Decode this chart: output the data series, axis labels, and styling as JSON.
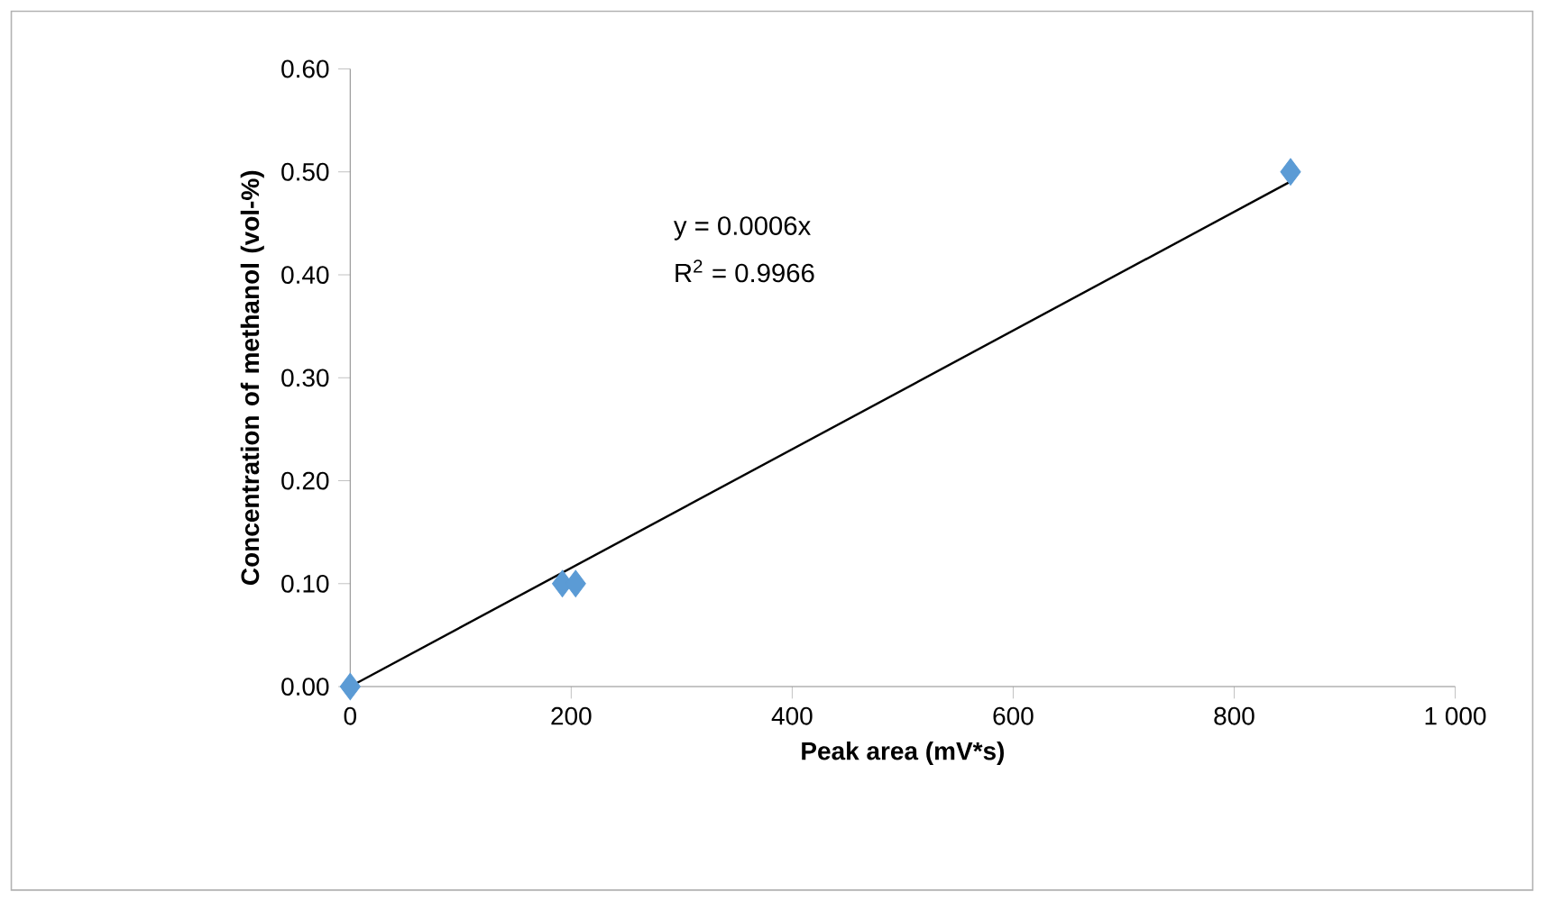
{
  "chart_data": {
    "type": "scatter",
    "xlabel": "Peak area (mV*s)",
    "ylabel": "Concentration of methanol (vol-%)",
    "xlim": [
      0,
      1000
    ],
    "xticks": [
      0,
      200,
      400,
      600,
      800,
      {
        "value": 1000,
        "label": "1 000"
      }
    ],
    "ylim": [
      0,
      0.6
    ],
    "yticks": [
      {
        "value": 0,
        "label": "0.00"
      },
      {
        "value": 0.1,
        "label": "0.10"
      },
      {
        "value": 0.2,
        "label": "0.20"
      },
      {
        "value": 0.3,
        "label": "0.30"
      },
      {
        "value": 0.4,
        "label": "0.40"
      },
      {
        "value": 0.5,
        "label": "0.50"
      },
      {
        "value": 0.6,
        "label": "0.60"
      }
    ],
    "grid": false,
    "marker": "diamond",
    "series": [
      {
        "color": "#5b9bd5",
        "x": [
          0,
          192,
          204,
          851
        ],
        "values": [
          0,
          0.1,
          0.1,
          0.5
        ]
      },
      {
        "type": "line",
        "color": "#000000",
        "marker": "none",
        "x": [
          0,
          850
        ],
        "values": [
          0,
          0.49
        ]
      }
    ],
    "annotations": [
      "y = 0.0006x",
      "R$^{2}$ = 0.9966"
    ]
  }
}
